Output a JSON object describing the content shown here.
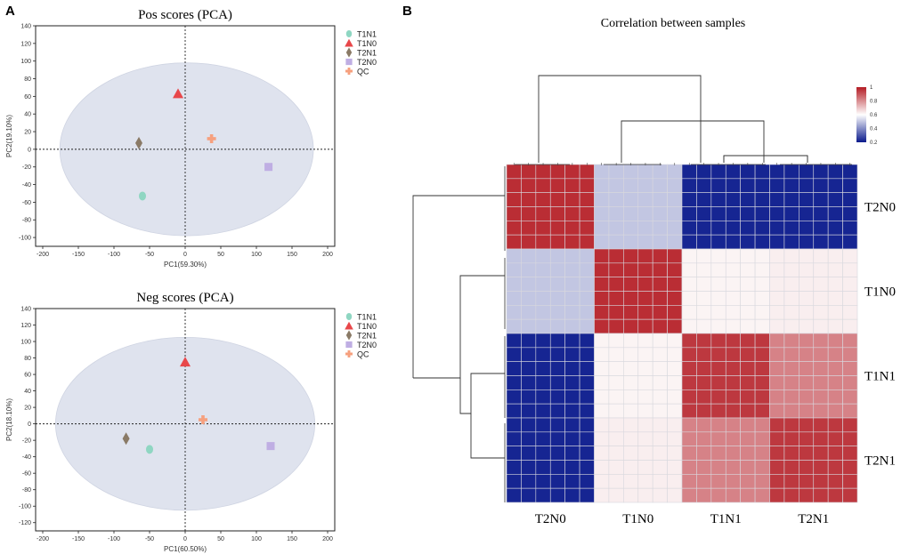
{
  "panels": {
    "a": "A",
    "b": "B"
  },
  "chart_data": [
    {
      "type": "scatter",
      "title": "Pos scores (PCA)",
      "xlabel": "PC1(59.30%)",
      "ylabel": "PC2(19.10%)",
      "xlim": [
        -210,
        210
      ],
      "ylim": [
        -110,
        140
      ],
      "xticks": [
        -200,
        -150,
        -100,
        -50,
        0,
        50,
        100,
        150,
        200
      ],
      "yticks": [
        -100,
        -80,
        -60,
        -40,
        -20,
        0,
        20,
        40,
        60,
        80,
        100,
        120,
        140
      ],
      "ellipse": {
        "cx": 2,
        "cy": 0,
        "rx": 178,
        "ry": 98
      },
      "series": [
        {
          "name": "T1N1",
          "marker": "circle",
          "color": "#8fd6c2",
          "points": [
            [
              -60,
              -53
            ]
          ]
        },
        {
          "name": "T1N0",
          "marker": "triangle",
          "color": "#e8474a",
          "points": [
            [
              -10,
              63
            ]
          ]
        },
        {
          "name": "T2N1",
          "marker": "diamond",
          "color": "#8a7a66",
          "points": [
            [
              -65,
              7
            ]
          ]
        },
        {
          "name": "T2N0",
          "marker": "square",
          "color": "#bfaee3",
          "points": [
            [
              117,
              -20
            ]
          ]
        },
        {
          "name": "QC",
          "marker": "cross",
          "color": "#f6a07e",
          "points": [
            [
              37,
              12
            ]
          ]
        }
      ]
    },
    {
      "type": "scatter",
      "title": "Neg scores (PCA)",
      "xlabel": "PC1(60.50%)",
      "ylabel": "PC2(18.10%)",
      "xlim": [
        -210,
        210
      ],
      "ylim": [
        -130,
        140
      ],
      "xticks": [
        -200,
        -150,
        -100,
        -50,
        0,
        50,
        100,
        150,
        200
      ],
      "yticks": [
        -120,
        -100,
        -80,
        -60,
        -40,
        -20,
        0,
        20,
        40,
        60,
        80,
        100,
        120,
        140
      ],
      "ellipse": {
        "cx": 0,
        "cy": 0,
        "rx": 182,
        "ry": 105
      },
      "series": [
        {
          "name": "T1N1",
          "marker": "circle",
          "color": "#8fd6c2",
          "points": [
            [
              -50,
              -31
            ]
          ]
        },
        {
          "name": "T1N0",
          "marker": "triangle",
          "color": "#e8474a",
          "points": [
            [
              0,
              75
            ]
          ]
        },
        {
          "name": "T2N1",
          "marker": "diamond",
          "color": "#8a7a66",
          "points": [
            [
              -83,
              -18
            ]
          ]
        },
        {
          "name": "T2N0",
          "marker": "square",
          "color": "#bfaee3",
          "points": [
            [
              120,
              -27
            ]
          ]
        },
        {
          "name": "QC",
          "marker": "cross",
          "color": "#f6a07e",
          "points": [
            [
              25,
              5
            ]
          ]
        }
      ]
    },
    {
      "type": "heatmap",
      "title": "Correlation between samples",
      "groups": [
        "T2N0",
        "T1N0",
        "T1N1",
        "T2N1"
      ],
      "reps_per_group": 6,
      "group_correlation": [
        [
          0.97,
          0.5,
          0.22,
          0.22
        ],
        [
          0.5,
          0.97,
          0.62,
          0.63
        ],
        [
          0.22,
          0.62,
          0.95,
          0.82
        ],
        [
          0.22,
          0.63,
          0.82,
          0.95
        ]
      ],
      "colorbar": {
        "min": 0.2,
        "max": 1,
        "ticks": [
          "1",
          "0.8",
          "0.6",
          "0.4",
          "0.2"
        ],
        "colors": [
          "#0a1a8c",
          "#ffffff",
          "#b41c24"
        ]
      }
    }
  ]
}
